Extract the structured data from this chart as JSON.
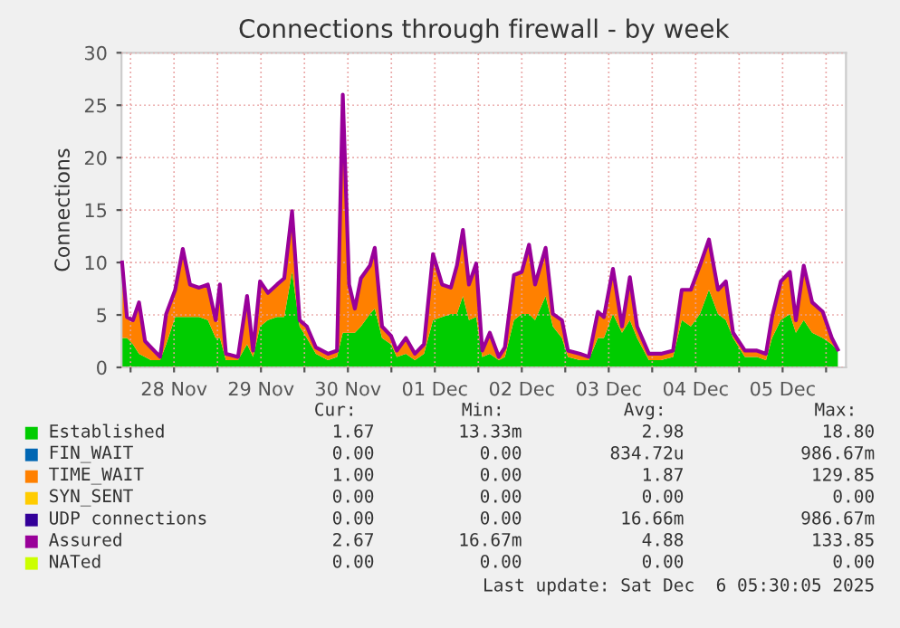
{
  "chart_data": {
    "type": "area",
    "title": "Connections through firewall - by week",
    "ylabel": "Connections",
    "stacked": true,
    "grid": true,
    "legend": "bottom",
    "xlim": [
      "2025-11-27T21:30",
      "2025-12-06T05:30"
    ],
    "xticks": [
      {
        "value": "2025-11-28T00:00",
        "label": null
      },
      {
        "value": "2025-11-28T12:00",
        "label": "28 Nov"
      },
      {
        "value": "2025-11-29T00:00",
        "label": null
      },
      {
        "value": "2025-11-29T12:00",
        "label": "29 Nov"
      },
      {
        "value": "2025-11-30T00:00",
        "label": null
      },
      {
        "value": "2025-11-30T12:00",
        "label": "30 Nov"
      },
      {
        "value": "2025-12-01T00:00",
        "label": null
      },
      {
        "value": "2025-12-01T12:00",
        "label": "01 Dec"
      },
      {
        "value": "2025-12-02T00:00",
        "label": null
      },
      {
        "value": "2025-12-02T12:00",
        "label": "02 Dec"
      },
      {
        "value": "2025-12-03T00:00",
        "label": null
      },
      {
        "value": "2025-12-03T12:00",
        "label": "03 Dec"
      },
      {
        "value": "2025-12-04T00:00",
        "label": null
      },
      {
        "value": "2025-12-04T12:00",
        "label": "04 Dec"
      },
      {
        "value": "2025-12-05T00:00",
        "label": null
      },
      {
        "value": "2025-12-05T12:00",
        "label": "05 Dec"
      },
      {
        "value": "2025-12-06T00:00",
        "label": null
      }
    ],
    "ylim": [
      0,
      30
    ],
    "yticks": [
      0,
      5,
      10,
      15,
      20,
      25,
      30
    ],
    "x": [
      "2025-11-27T21:40",
      "2025-11-27T23:00",
      "2025-11-28T00:40",
      "2025-11-28T02:20",
      "2025-11-28T04:00",
      "2025-11-28T05:40",
      "2025-11-28T08:10",
      "2025-11-28T09:50",
      "2025-11-28T12:20",
      "2025-11-28T14:25",
      "2025-11-28T16:25",
      "2025-11-28T18:55",
      "2025-11-28T21:20",
      "2025-11-28T23:30",
      "2025-11-29T00:40",
      "2025-11-29T02:20",
      "2025-11-29T05:40",
      "2025-11-29T08:10",
      "2025-11-29T09:50",
      "2025-11-29T11:45",
      "2025-11-29T13:55",
      "2025-11-29T16:25",
      "2025-11-29T18:25",
      "2025-11-29T20:35",
      "2025-11-29T22:40",
      "2025-11-30T00:40",
      "2025-11-30T03:10",
      "2025-11-30T06:30",
      "2025-11-30T09:00",
      "2025-11-30T10:35",
      "2025-11-30T12:20",
      "2025-11-30T13:55",
      "2025-11-30T15:35",
      "2025-11-30T18:05",
      "2025-11-30T19:25",
      "2025-11-30T21:25",
      "2025-11-30T23:55",
      "2025-12-01T01:30",
      "2025-12-01T04:00",
      "2025-12-01T06:30",
      "2025-12-01T09:00",
      "2025-12-01T11:30",
      "2025-12-01T14:00",
      "2025-12-01T16:25",
      "2025-12-01T18:05",
      "2025-12-01T19:45",
      "2025-12-01T21:25",
      "2025-12-01T23:25",
      "2025-12-02T01:05",
      "2025-12-02T03:10",
      "2025-12-02T05:40",
      "2025-12-02T07:20",
      "2025-12-02T09:50",
      "2025-12-02T12:00",
      "2025-12-02T14:00",
      "2025-12-02T15:40",
      "2025-12-02T18:35",
      "2025-12-02T20:35",
      "2025-12-02T23:05",
      "2025-12-03T00:45",
      "2025-12-03T04:05",
      "2025-12-03T06:30",
      "2025-12-03T09:00",
      "2025-12-03T10:40",
      "2025-12-03T13:10",
      "2025-12-03T15:40",
      "2025-12-03T17:50",
      "2025-12-03T19:50",
      "2025-12-03T23:05",
      "2025-12-04T02:25",
      "2025-12-04T05:45",
      "2025-12-04T08:10",
      "2025-12-04T10:40",
      "2025-12-04T13:10",
      "2025-12-04T15:40",
      "2025-12-04T18:10",
      "2025-12-04T20:20",
      "2025-12-04T22:20",
      "2025-12-05T01:35",
      "2025-12-05T04:55",
      "2025-12-05T07:25",
      "2025-12-05T09:05",
      "2025-12-05T11:30",
      "2025-12-05T14:00",
      "2025-12-05T15:40",
      "2025-12-05T17:50",
      "2025-12-05T20:10",
      "2025-12-05T23:05",
      "2025-12-06T01:35",
      "2025-12-06T03:15"
    ],
    "series": [
      {
        "name": "Established",
        "color": "#00cc00",
        "values": [
          2.8,
          2.8,
          2.2,
          1.3,
          1.0,
          0.7,
          0.7,
          2.2,
          4.8,
          4.8,
          4.8,
          4.8,
          4.5,
          2.8,
          2.8,
          0.7,
          0.7,
          2.2,
          1.0,
          3.9,
          4.5,
          4.8,
          4.8,
          9.1,
          3.9,
          2.8,
          1.3,
          0.7,
          1.0,
          3.3,
          3.3,
          3.3,
          3.9,
          5.1,
          5.6,
          2.8,
          2.2,
          1.0,
          1.3,
          0.7,
          1.3,
          4.5,
          4.8,
          5.1,
          5.1,
          6.8,
          4.5,
          4.8,
          1.0,
          1.3,
          0.7,
          1.0,
          4.5,
          5.1,
          5.1,
          4.5,
          6.8,
          3.9,
          2.8,
          1.0,
          0.7,
          0.7,
          2.8,
          2.8,
          5.1,
          3.3,
          4.5,
          2.8,
          0.7,
          0.7,
          1.0,
          4.5,
          3.9,
          5.1,
          7.4,
          5.1,
          4.5,
          2.8,
          1.0,
          1.0,
          0.7,
          2.8,
          4.5,
          5.1,
          3.3,
          4.5,
          3.3,
          2.8,
          2.2,
          1.6
        ]
      },
      {
        "name": "FIN_WAIT",
        "color": "#0066b3",
        "type": "line",
        "values": [
          null,
          null,
          null,
          null,
          null,
          null,
          null,
          null,
          null,
          null,
          null,
          null,
          null,
          null,
          null,
          null,
          null,
          null,
          null,
          null,
          null,
          null,
          null,
          null,
          null,
          null,
          null,
          null,
          null,
          null,
          null,
          null,
          null,
          null,
          null,
          null,
          null,
          null,
          null,
          null,
          null,
          null,
          null,
          null,
          null,
          null,
          null,
          null,
          null,
          null,
          null,
          null,
          null,
          null,
          null,
          null,
          null,
          null,
          null,
          null,
          null,
          null,
          null,
          null,
          null,
          null,
          null,
          null,
          null,
          null,
          null,
          null,
          null,
          null,
          null,
          null,
          null,
          null,
          null,
          null,
          null,
          null,
          null,
          null,
          null,
          null,
          null,
          null,
          null,
          null
        ]
      },
      {
        "name": "TIME_WAIT",
        "color": "#ff8000",
        "values": [
          7.2,
          2.0,
          2.3,
          4.9,
          1.5,
          1.2,
          0.3,
          2.9,
          2.6,
          6.5,
          3.1,
          2.8,
          3.4,
          1.7,
          5.1,
          0.6,
          0.3,
          4.6,
          0.6,
          4.3,
          2.6,
          3.1,
          3.7,
          5.8,
          0.6,
          1.1,
          0.6,
          0.6,
          0.6,
          22.7,
          4.6,
          2.3,
          4.6,
          4.6,
          5.8,
          1.1,
          0.8,
          0.6,
          1.5,
          0.6,
          0.9,
          6.3,
          3.1,
          2.5,
          4.6,
          6.3,
          3.4,
          5.1,
          0.6,
          2.0,
          0.3,
          0.9,
          4.3,
          4.0,
          6.6,
          3.4,
          4.6,
          1.2,
          1.7,
          0.6,
          0.6,
          0.3,
          2.5,
          2.0,
          4.3,
          0.6,
          4.1,
          1.1,
          0.6,
          0.6,
          0.6,
          2.9,
          3.5,
          4.6,
          4.8,
          2.3,
          3.7,
          0.5,
          0.6,
          0.6,
          0.6,
          2.0,
          3.7,
          4.0,
          1.2,
          5.2,
          2.9,
          2.5,
          0.6,
          0.1
        ]
      },
      {
        "name": "SYN_SENT",
        "color": "#ffcc00",
        "type": "line",
        "values": [
          null,
          null,
          null,
          null,
          null,
          null,
          null,
          null,
          null,
          null,
          null,
          null,
          null,
          null,
          null,
          null,
          null,
          null,
          null,
          null,
          null,
          null,
          null,
          null,
          null,
          null,
          null,
          null,
          null,
          null,
          null,
          null,
          null,
          null,
          null,
          null,
          null,
          null,
          null,
          null,
          null,
          null,
          null,
          null,
          null,
          null,
          null,
          null,
          null,
          null,
          null,
          null,
          null,
          null,
          null,
          null,
          null,
          null,
          null,
          null,
          null,
          null,
          null,
          null,
          null,
          null,
          null,
          null,
          null,
          null,
          null,
          null,
          null,
          null,
          null,
          null,
          null,
          null,
          null,
          null,
          null,
          null,
          null,
          null,
          null,
          null,
          null,
          null,
          null,
          null
        ]
      },
      {
        "name": "UDP connections",
        "color": "#330099",
        "type": "line",
        "values": [
          null,
          null,
          null,
          null,
          null,
          null,
          null,
          null,
          null,
          null,
          null,
          null,
          null,
          null,
          null,
          null,
          null,
          null,
          null,
          null,
          null,
          null,
          null,
          null,
          null,
          null,
          null,
          null,
          null,
          null,
          null,
          null,
          null,
          null,
          null,
          null,
          null,
          null,
          null,
          null,
          null,
          null,
          null,
          null,
          null,
          null,
          null,
          null,
          null,
          null,
          null,
          null,
          null,
          null,
          null,
          null,
          null,
          null,
          null,
          null,
          null,
          null,
          null,
          null,
          null,
          null,
          null,
          null,
          null,
          null,
          null,
          null,
          null,
          null,
          null,
          null,
          null,
          null,
          null,
          null,
          null,
          null,
          null,
          null,
          null,
          null,
          null,
          null,
          null,
          null
        ]
      },
      {
        "name": "Assured",
        "color": "#990099",
        "type": "line",
        "values": [
          10.0,
          4.8,
          4.5,
          6.2,
          2.5,
          1.9,
          1.0,
          5.1,
          7.4,
          11.3,
          7.9,
          7.6,
          7.9,
          4.5,
          7.9,
          1.3,
          1.0,
          6.8,
          1.6,
          8.2,
          7.1,
          7.9,
          8.5,
          14.9,
          4.5,
          3.9,
          1.9,
          1.3,
          1.6,
          26.0,
          7.9,
          5.6,
          8.5,
          9.7,
          11.4,
          3.9,
          3.0,
          1.6,
          2.8,
          1.3,
          2.2,
          10.8,
          7.9,
          7.6,
          9.7,
          13.1,
          7.9,
          9.9,
          1.6,
          3.3,
          1.0,
          1.9,
          8.8,
          9.1,
          11.7,
          7.9,
          11.4,
          5.1,
          4.5,
          1.6,
          1.3,
          1.0,
          5.3,
          4.8,
          9.4,
          3.9,
          8.6,
          3.9,
          1.3,
          1.3,
          1.6,
          7.4,
          7.4,
          9.7,
          12.2,
          7.4,
          8.2,
          3.3,
          1.6,
          1.6,
          1.3,
          4.8,
          8.2,
          9.1,
          4.5,
          9.7,
          6.2,
          5.3,
          2.8,
          1.7
        ]
      },
      {
        "name": "NATed",
        "color": "#ccff00",
        "type": "line",
        "values": [
          null,
          null,
          null,
          null,
          null,
          null,
          null,
          null,
          null,
          null,
          null,
          null,
          null,
          null,
          null,
          null,
          null,
          null,
          null,
          null,
          null,
          null,
          null,
          null,
          null,
          null,
          null,
          null,
          null,
          null,
          null,
          null,
          null,
          null,
          null,
          null,
          null,
          null,
          null,
          null,
          null,
          null,
          null,
          null,
          null,
          null,
          null,
          null,
          null,
          null,
          null,
          null,
          null,
          null,
          null,
          null,
          null,
          null,
          null,
          null,
          null,
          null,
          null,
          null,
          null,
          null,
          null,
          null,
          null,
          null,
          null,
          null,
          null,
          null,
          null,
          null,
          null,
          null,
          null,
          null,
          null,
          null,
          null,
          null,
          null,
          null,
          null,
          null,
          null,
          null
        ]
      }
    ],
    "annotations": [
      "Cur:",
      "Min:",
      "Avg:",
      "Max:",
      "1.67",
      "13.33m",
      "2.98",
      "18.80",
      "0.00",
      "0.00",
      "834.72u",
      "986.67m",
      "1.00",
      "0.00",
      "1.87",
      "129.85",
      "0.00",
      "0.00",
      "0.00",
      "0.00",
      "0.00",
      "0.00",
      "16.66m",
      "986.67m",
      "2.67",
      "16.67m",
      "4.88",
      "133.85",
      "0.00",
      "0.00",
      "0.00",
      "0.00",
      "Last update: Sat Dec  6 05:30:05 2025"
    ]
  }
}
